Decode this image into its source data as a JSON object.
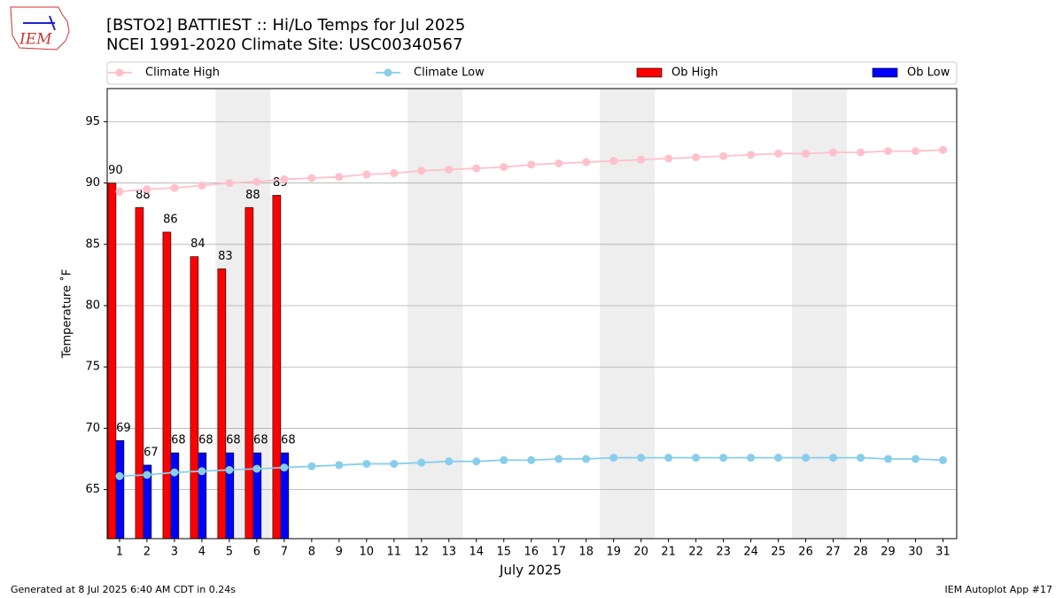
{
  "chart_data": {
    "type": "bar",
    "title": "[BSTO2] BATTIEST :: Hi/Lo Temps for Jul 2025",
    "subtitle": "NCEI 1991-2020 Climate Site: USC00340567",
    "logo_text": "IEM",
    "x_label": "July 2025",
    "y_label": "Temperature ˚F",
    "footer_left": "Generated at 8 Jul 2025 6:40 AM CDT in 0.24s",
    "footer_right": "IEM Autoplot App #17",
    "x": [
      1,
      2,
      3,
      4,
      5,
      6,
      7,
      8,
      9,
      10,
      11,
      12,
      13,
      14,
      15,
      16,
      17,
      18,
      19,
      20,
      21,
      22,
      23,
      24,
      25,
      26,
      27,
      28,
      29,
      30,
      31
    ],
    "xlim": [
      0.55,
      31.5
    ],
    "xticks": [
      1,
      2,
      3,
      4,
      5,
      6,
      7,
      8,
      9,
      10,
      11,
      12,
      13,
      14,
      15,
      16,
      17,
      18,
      19,
      20,
      21,
      22,
      23,
      24,
      25,
      26,
      27,
      28,
      29,
      30,
      31
    ],
    "ylim": [
      61,
      97.7
    ],
    "yticks": [
      65,
      70,
      75,
      80,
      85,
      90,
      95
    ],
    "grid": true,
    "shaded_ranges": [
      [
        4.5,
        6.5
      ],
      [
        11.5,
        13.5
      ],
      [
        18.5,
        20.5
      ],
      [
        25.5,
        27.5
      ]
    ],
    "shade_color": "#eeeeee",
    "series": [
      {
        "name": "Climate High",
        "type": "line",
        "color": "pink",
        "values": [
          89.3,
          89.5,
          89.6,
          89.8,
          90.0,
          90.1,
          90.3,
          90.4,
          90.5,
          90.7,
          90.8,
          91.0,
          91.1,
          91.2,
          91.3,
          91.5,
          91.6,
          91.7,
          91.8,
          91.9,
          92.0,
          92.1,
          92.2,
          92.3,
          92.4,
          92.4,
          92.5,
          92.5,
          92.6,
          92.6,
          92.7
        ]
      },
      {
        "name": "Climate Low",
        "type": "line",
        "color": "skyblue",
        "values": [
          66.1,
          66.2,
          66.4,
          66.5,
          66.6,
          66.7,
          66.8,
          66.9,
          67.0,
          67.1,
          67.1,
          67.2,
          67.3,
          67.3,
          67.4,
          67.4,
          67.5,
          67.5,
          67.6,
          67.6,
          67.6,
          67.6,
          67.6,
          67.6,
          67.6,
          67.6,
          67.6,
          67.6,
          67.5,
          67.5,
          67.4
        ]
      },
      {
        "name": "Ob High",
        "type": "bar",
        "color": "red",
        "values": [
          90,
          88,
          86,
          84,
          83,
          88,
          89,
          null,
          null,
          null,
          null,
          null,
          null,
          null,
          null,
          null,
          null,
          null,
          null,
          null,
          null,
          null,
          null,
          null,
          null,
          null,
          null,
          null,
          null,
          null,
          null
        ]
      },
      {
        "name": "Ob Low",
        "type": "bar",
        "color": "blue",
        "values": [
          69,
          67,
          68,
          68,
          68,
          68,
          68,
          null,
          null,
          null,
          null,
          null,
          null,
          null,
          null,
          null,
          null,
          null,
          null,
          null,
          null,
          null,
          null,
          null,
          null,
          null,
          null,
          null,
          null,
          null,
          null
        ]
      }
    ]
  }
}
